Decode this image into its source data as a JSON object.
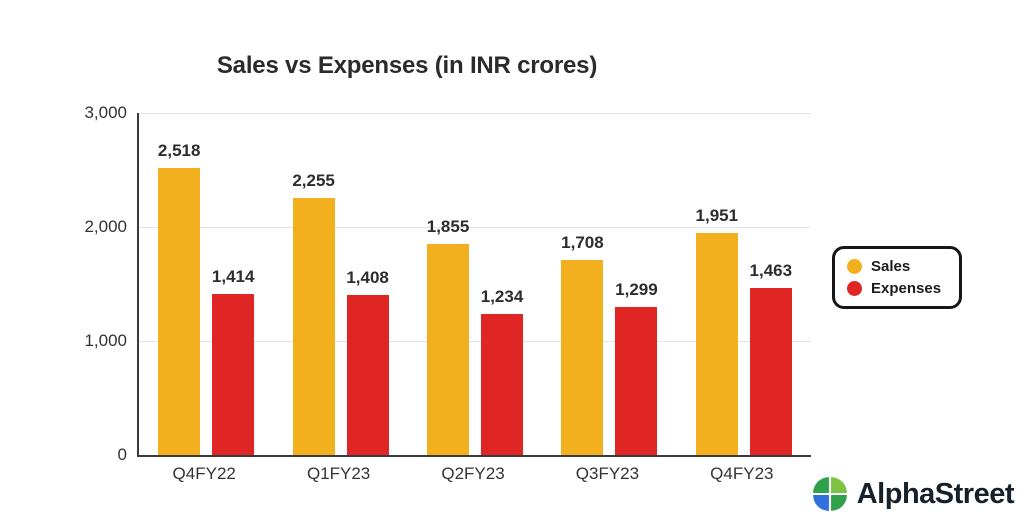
{
  "chart_data": {
    "type": "bar",
    "title": "Sales vs Expenses (in INR crores)",
    "categories": [
      "Q4FY22",
      "Q1FY23",
      "Q2FY23",
      "Q3FY23",
      "Q4FY23"
    ],
    "series": [
      {
        "name": "Sales",
        "color": "#F2B01E",
        "values": [
          2518,
          2255,
          1855,
          1708,
          1951
        ]
      },
      {
        "name": "Expenses",
        "color": "#E02525",
        "values": [
          1414,
          1408,
          1234,
          1299,
          1463
        ]
      }
    ],
    "xlabel": "",
    "ylabel": "",
    "ylim": [
      0,
      3000
    ],
    "yticks": [
      "0",
      "1,000",
      "2,000",
      "3,000"
    ],
    "grid": true,
    "legend_position": "right"
  },
  "branding": {
    "name": "AlphaStreet"
  }
}
